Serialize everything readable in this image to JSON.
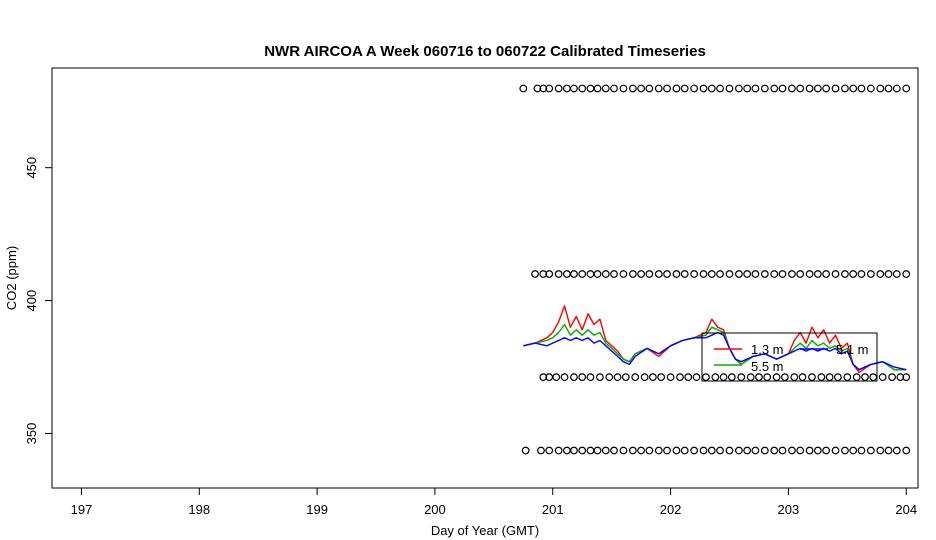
{
  "chart_data": {
    "type": "line",
    "title": "NWR AIRCOA A  Week 060716 to 060722  Calibrated Timeseries",
    "xlabel": "Day of Year (GMT)",
    "ylabel": "CO2 (ppm)",
    "xlim": [
      196.75,
      204.1
    ],
    "ylim": [
      329.5,
      487.5
    ],
    "xticks": [
      197,
      198,
      199,
      200,
      201,
      202,
      203,
      204
    ],
    "yticks": [
      350,
      400,
      450
    ],
    "grid": false,
    "legend_placement": "inside-right",
    "series": [
      {
        "name": "1.3 m",
        "color": "#ff0000",
        "x": [
          200.75,
          200.85,
          200.95,
          201.0,
          201.05,
          201.1,
          201.15,
          201.2,
          201.25,
          201.3,
          201.35,
          201.4,
          201.45,
          201.5,
          201.55,
          201.6,
          201.65,
          201.7,
          201.8,
          201.9,
          202.0,
          202.1,
          202.2,
          202.3,
          202.35,
          202.4,
          202.45,
          202.5,
          202.55,
          202.6,
          202.7,
          202.8,
          202.9,
          203.0,
          203.05,
          203.1,
          203.15,
          203.2,
          203.25,
          203.3,
          203.35,
          203.4,
          203.45,
          203.5,
          203.55,
          203.6,
          203.7,
          203.8,
          203.9,
          204.0
        ],
        "y": [
          383,
          384,
          386,
          388,
          392,
          398,
          390,
          394,
          389,
          395,
          391,
          393,
          385,
          383,
          381,
          378,
          377,
          380,
          382,
          379,
          383,
          385,
          386,
          388,
          393,
          390,
          389,
          382,
          378,
          376,
          379,
          380,
          378,
          380,
          385,
          388,
          384,
          390,
          386,
          389,
          384,
          387,
          382,
          384,
          376,
          373,
          376,
          377,
          374,
          374
        ]
      },
      {
        "name": "5.5 m",
        "color": "#00b000",
        "x": [
          200.75,
          200.85,
          200.95,
          201.0,
          201.05,
          201.1,
          201.15,
          201.2,
          201.25,
          201.3,
          201.35,
          201.4,
          201.45,
          201.5,
          201.55,
          201.6,
          201.65,
          201.7,
          201.8,
          201.9,
          202.0,
          202.1,
          202.2,
          202.3,
          202.35,
          202.4,
          202.45,
          202.5,
          202.55,
          202.6,
          202.7,
          202.8,
          202.9,
          203.0,
          203.05,
          203.1,
          203.15,
          203.2,
          203.25,
          203.3,
          203.35,
          203.4,
          203.45,
          203.5,
          203.55,
          203.6,
          203.7,
          203.8,
          203.9,
          204.0
        ],
        "y": [
          383,
          384,
          385,
          386,
          388,
          391,
          387,
          389,
          387,
          389,
          387,
          388,
          384,
          382,
          380,
          378,
          377,
          380,
          382,
          380,
          383,
          385,
          386,
          387,
          390,
          389,
          388,
          382,
          378,
          376,
          379,
          380,
          378,
          380,
          382,
          384,
          382,
          385,
          383,
          384,
          382,
          383,
          381,
          382,
          376,
          374,
          376,
          377,
          374,
          374
        ]
      },
      {
        "name": "5.1 m",
        "color": "#0000ff",
        "x": [
          200.75,
          200.85,
          200.95,
          201.0,
          201.05,
          201.1,
          201.15,
          201.2,
          201.25,
          201.3,
          201.35,
          201.4,
          201.45,
          201.5,
          201.55,
          201.6,
          201.65,
          201.7,
          201.8,
          201.9,
          202.0,
          202.1,
          202.2,
          202.3,
          202.35,
          202.4,
          202.45,
          202.5,
          202.55,
          202.6,
          202.7,
          202.8,
          202.9,
          203.0,
          203.05,
          203.1,
          203.15,
          203.2,
          203.25,
          203.3,
          203.35,
          203.4,
          203.45,
          203.5,
          203.55,
          203.6,
          203.7,
          203.8,
          203.9,
          204.0
        ],
        "y": [
          383,
          384,
          383,
          384,
          385,
          386,
          385,
          386,
          385,
          386,
          384,
          385,
          383,
          381,
          379,
          377,
          376,
          379,
          382,
          380,
          383,
          385,
          386,
          386,
          387,
          388,
          387,
          382,
          378,
          377,
          379,
          380,
          378,
          380,
          381,
          382,
          381,
          382,
          381,
          382,
          381,
          382,
          380,
          381,
          376,
          374,
          376,
          377,
          375,
          374
        ]
      }
    ],
    "calibration_levels": [
      {
        "y": 479.8,
        "x": [
          200.75,
          200.87,
          200.92,
          200.97,
          201.05,
          201.12,
          201.18,
          201.25,
          201.32,
          201.38,
          201.45,
          201.52,
          201.6,
          201.68,
          201.75,
          201.82,
          201.9,
          201.97,
          202.05,
          202.12,
          202.2,
          202.28,
          202.35,
          202.42,
          202.5,
          202.58,
          202.65,
          202.72,
          202.8,
          202.88,
          202.95,
          203.03,
          203.1,
          203.18,
          203.25,
          203.32,
          203.4,
          203.48,
          203.55,
          203.62,
          203.7,
          203.78,
          203.85,
          203.92,
          204.0
        ]
      },
      {
        "y": 410,
        "x": [
          200.85,
          200.92,
          200.97,
          201.05,
          201.12,
          201.18,
          201.25,
          201.32,
          201.38,
          201.45,
          201.52,
          201.6,
          201.68,
          201.75,
          201.82,
          201.9,
          201.97,
          202.05,
          202.12,
          202.2,
          202.28,
          202.35,
          202.42,
          202.5,
          202.58,
          202.65,
          202.72,
          202.8,
          202.88,
          202.95,
          203.03,
          203.1,
          203.18,
          203.25,
          203.32,
          203.4,
          203.48,
          203.55,
          203.62,
          203.7,
          203.78,
          203.85,
          203.92,
          204.0
        ]
      },
      {
        "y": 371.2,
        "x": [
          200.92,
          200.97,
          201.03,
          201.1,
          201.18,
          201.25,
          201.32,
          201.4,
          201.48,
          201.55,
          201.62,
          201.7,
          201.78,
          201.85,
          201.92,
          202.0,
          202.08,
          202.15,
          202.22,
          202.3,
          202.38,
          202.45,
          202.52,
          202.6,
          202.68,
          202.75,
          202.82,
          202.9,
          202.97,
          203.05,
          203.12,
          203.2,
          203.28,
          203.35,
          203.42,
          203.5,
          203.58,
          203.65,
          203.72,
          203.8,
          203.88,
          203.95,
          204.0
        ]
      },
      {
        "y": 343.6,
        "x": [
          200.77,
          200.9,
          200.97,
          201.05,
          201.12,
          201.18,
          201.25,
          201.32,
          201.38,
          201.45,
          201.52,
          201.6,
          201.68,
          201.75,
          201.82,
          201.9,
          201.97,
          202.05,
          202.12,
          202.2,
          202.28,
          202.35,
          202.42,
          202.5,
          202.58,
          202.65,
          202.72,
          202.8,
          202.88,
          202.95,
          203.03,
          203.1,
          203.18,
          203.25,
          203.32,
          203.4,
          203.48,
          203.55,
          203.62,
          203.7,
          203.78,
          203.85,
          203.92,
          204.0
        ]
      }
    ]
  }
}
